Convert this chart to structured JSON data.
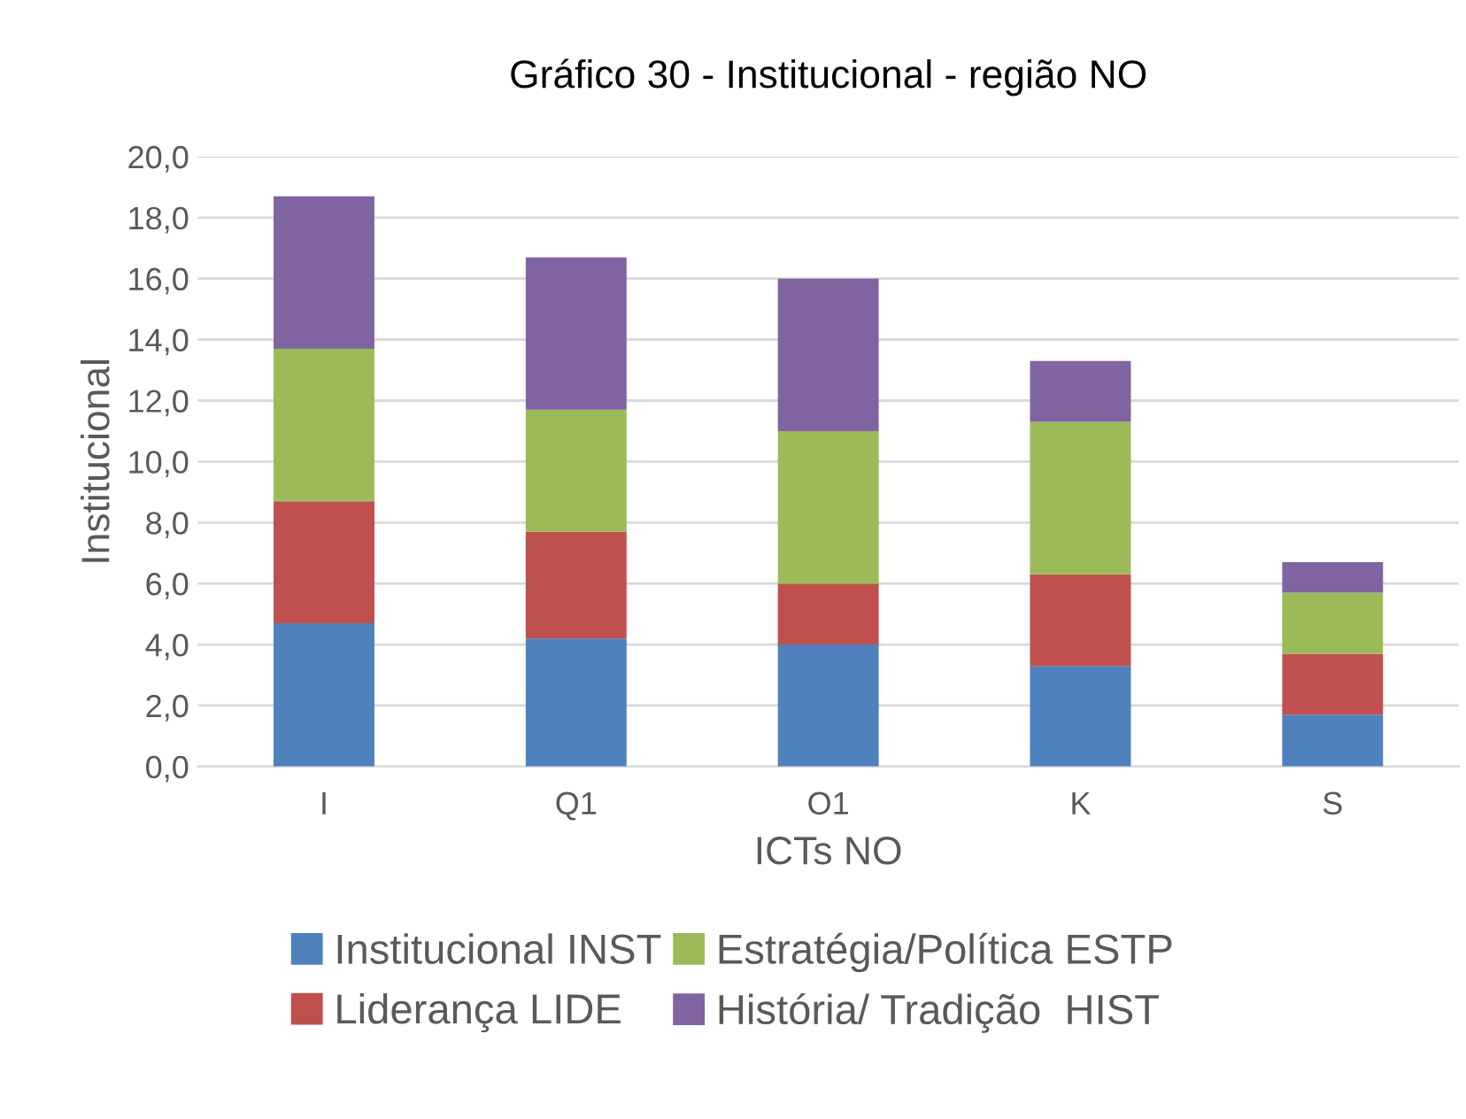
{
  "chart_data": {
    "type": "bar",
    "title": "Gráfico 30 - Institucional - região NO",
    "xlabel": "ICTs NO",
    "ylabel": "Institucional",
    "categories": [
      "I",
      "Q1",
      "O1",
      "K",
      "S"
    ],
    "stacked": true,
    "series": [
      {
        "name": "Institucional INST",
        "color": "#4f81bd",
        "values": [
          4.7,
          4.2,
          4.0,
          3.3,
          1.7
        ]
      },
      {
        "name": "Liderança LIDE",
        "color": "#c0504d",
        "values": [
          4.0,
          3.5,
          2.0,
          3.0,
          2.0
        ]
      },
      {
        "name": "Estratégia/Política ESTP",
        "color": "#9bbb59",
        "values": [
          5.0,
          4.0,
          5.0,
          5.0,
          2.0
        ]
      },
      {
        "name": "História/ Tradição  HIST",
        "color": "#8064a2",
        "values": [
          5.0,
          5.0,
          5.0,
          2.0,
          1.0
        ]
      }
    ],
    "ylim": [
      0,
      20
    ],
    "yticks": [
      {
        "value": 0,
        "label": "0,0"
      },
      {
        "value": 2,
        "label": "2,0"
      },
      {
        "value": 4,
        "label": "4,0"
      },
      {
        "value": 6,
        "label": "6,0"
      },
      {
        "value": 8,
        "label": "8,0"
      },
      {
        "value": 10,
        "label": "10,0"
      },
      {
        "value": 12,
        "label": "12,0"
      },
      {
        "value": 14,
        "label": "14,0"
      },
      {
        "value": 16,
        "label": "16,0"
      },
      {
        "value": 18,
        "label": "18,0"
      },
      {
        "value": 20,
        "label": "20,0"
      }
    ],
    "grid": "y",
    "legend": "bottom"
  }
}
